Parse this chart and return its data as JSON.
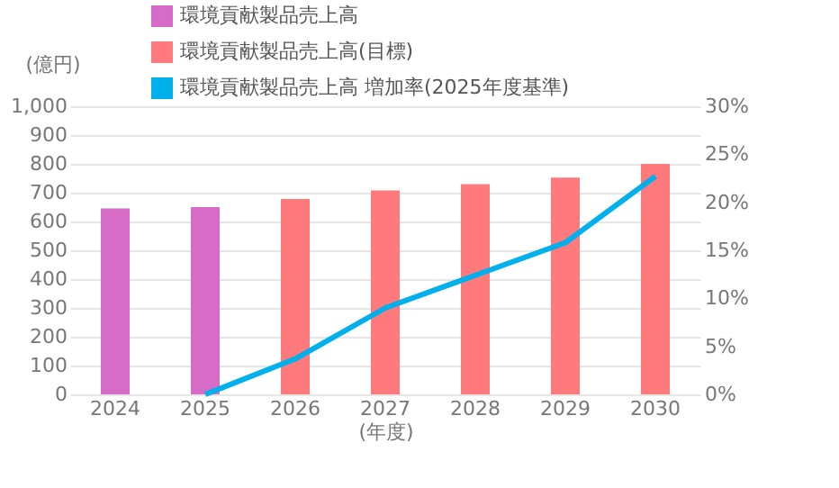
{
  "chart_data": {
    "type": "bar",
    "categories": [
      "2024",
      "2025",
      "2026",
      "2027",
      "2028",
      "2029",
      "2030"
    ],
    "xlabel": "(年度)",
    "ylabel": "(億円)",
    "series": [
      {
        "name": "環境貢献製品売上高",
        "color": "#d66bc8",
        "values": [
          645,
          650,
          null,
          null,
          null,
          null,
          null
        ]
      },
      {
        "name": "環境貢献製品売上高(目標)",
        "color": "#ff7a7c",
        "values": [
          null,
          null,
          678,
          708,
          730,
          752,
          800
        ]
      },
      {
        "name": "環境貢献製品売上高 増加率(2025年度基準)",
        "type": "line",
        "axis": "y2",
        "color": "#00b0ec",
        "values": [
          null,
          0,
          3.7,
          9.0,
          12.4,
          15.8,
          22.7
        ]
      }
    ],
    "ylim": [
      0,
      1000
    ],
    "yticks": [
      0,
      100,
      200,
      300,
      400,
      500,
      600,
      700,
      800,
      900,
      {
        "value": 1000,
        "label": "1,000"
      }
    ],
    "y2lim": [
      0,
      30
    ],
    "y2ticks": [
      {
        "value": 0,
        "label": "0%"
      },
      {
        "value": 5,
        "label": "5%"
      },
      {
        "value": 10,
        "label": "10%"
      },
      {
        "value": 15,
        "label": "15%"
      },
      {
        "value": 20,
        "label": "20%"
      },
      {
        "value": 25,
        "label": "25%"
      },
      {
        "value": 30,
        "label": "30%"
      }
    ],
    "grid": "y",
    "legend": "top",
    "marker": "none",
    "line_style": "solid"
  }
}
